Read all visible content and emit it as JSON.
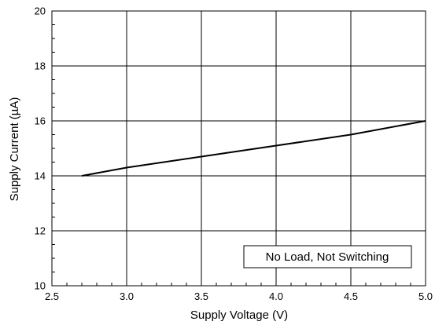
{
  "chart_data": {
    "type": "line",
    "xlabel": "Supply Voltage (V)",
    "ylabel": "Supply Current (µA)",
    "xlim": [
      2.5,
      5.0
    ],
    "ylim": [
      10,
      20
    ],
    "xticks": [
      "2.5",
      "3.0",
      "3.5",
      "4.0",
      "4.5",
      "5.0"
    ],
    "yticks": [
      "10",
      "12",
      "14",
      "16",
      "18",
      "20"
    ],
    "grid": true,
    "annotation": "No Load, Not Switching",
    "annotation_position": "bottom-right",
    "series": [
      {
        "color": "#000000",
        "x": [
          2.7,
          3.0,
          3.5,
          4.0,
          4.5,
          5.0
        ],
        "y": [
          14.0,
          14.3,
          14.7,
          15.1,
          15.5,
          16.0
        ]
      }
    ]
  }
}
